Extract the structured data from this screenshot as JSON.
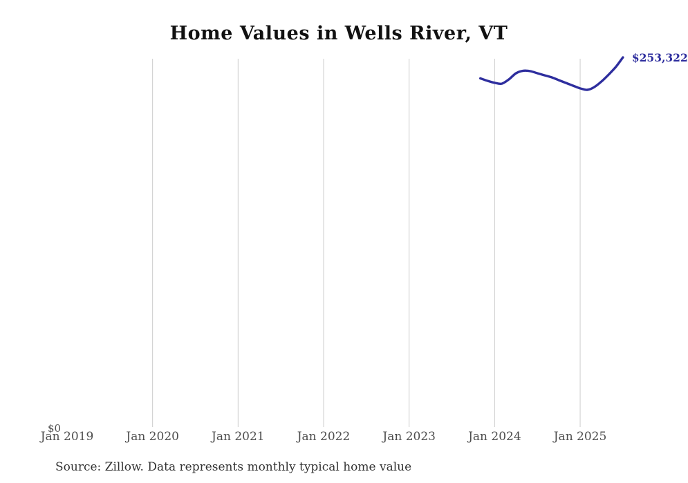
{
  "page": {
    "title": "Home Values in Wells River, VT",
    "source_note": "Source: Zillow. Data represents monthly typical home value"
  },
  "chart_data": {
    "type": "line",
    "title": "Home Values in Wells River, VT",
    "series_name": "Monthly typical home value",
    "x": [
      "2023-11",
      "2023-12",
      "2024-01",
      "2024-02",
      "2024-03",
      "2024-04",
      "2024-05",
      "2024-06",
      "2024-07",
      "2024-08",
      "2024-09",
      "2024-10",
      "2024-11",
      "2024-12",
      "2025-01",
      "2025-02",
      "2025-03",
      "2025-04",
      "2025-05",
      "2025-06",
      "2025-07"
    ],
    "values": [
      239000,
      237300,
      236000,
      235400,
      238300,
      242500,
      244200,
      243900,
      242500,
      241100,
      239700,
      237800,
      235900,
      234000,
      232200,
      231200,
      233100,
      236900,
      241600,
      246800,
      253322
    ],
    "end_label": "$253,322",
    "x_ticks": [
      {
        "label": "Jan 2019",
        "month": "2019-01",
        "gridline": false
      },
      {
        "label": "Jan 2020",
        "month": "2020-01",
        "gridline": true
      },
      {
        "label": "Jan 2021",
        "month": "2021-01",
        "gridline": true
      },
      {
        "label": "Jan 2022",
        "month": "2022-01",
        "gridline": true
      },
      {
        "label": "Jan 2023",
        "month": "2023-01",
        "gridline": true
      },
      {
        "label": "Jan 2024",
        "month": "2024-01",
        "gridline": true
      },
      {
        "label": "Jan 2025",
        "month": "2025-01",
        "gridline": true
      }
    ],
    "y_axis": {
      "tick_label": "$0",
      "min": 0
    },
    "ylim": [
      0,
      253322
    ],
    "grid": "vertical-only",
    "legend": "none",
    "colors": {
      "line": "#2e2e9e",
      "end_label": "#2e2e9e",
      "gridline": "#cccccc",
      "title": "#111111",
      "tick_label": "#4d4d4d",
      "source": "#333333"
    }
  }
}
